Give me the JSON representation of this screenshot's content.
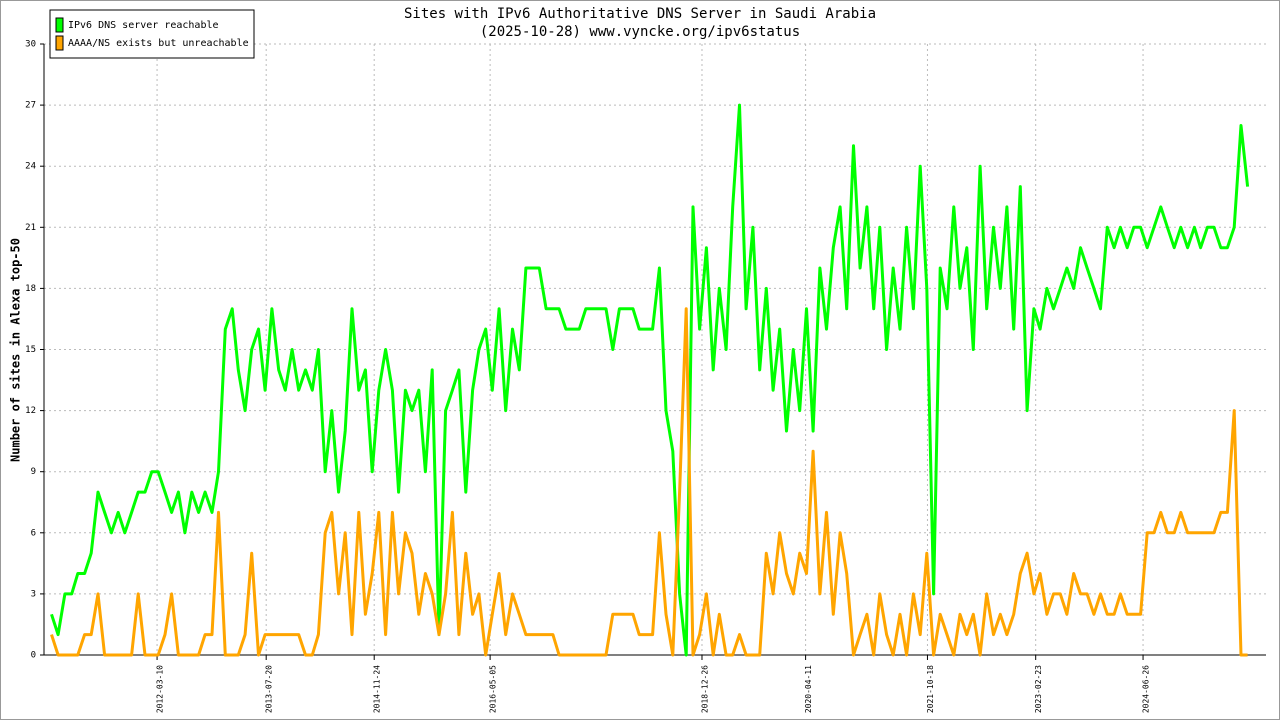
{
  "chart_data": {
    "type": "line",
    "title": "Sites with IPv6 Authoritative DNS Server in Saudi Arabia",
    "subtitle": "(2025-10-28) www.vyncke.org/ipv6status",
    "y_label": "Number of sites in Alexa top-50",
    "x": [
      "2010-11-15",
      "2010-12-15",
      "2011-01-15",
      "2011-02-15",
      "2011-03-15",
      "2011-04-15",
      "2011-05-15",
      "2011-06-15",
      "2011-07-15",
      "2011-08-15",
      "2011-09-15",
      "2011-10-15",
      "2011-11-15",
      "2011-12-15",
      "2012-01-15",
      "2012-02-15",
      "2012-03-15",
      "2012-04-15",
      "2012-05-15",
      "2012-06-15",
      "2012-07-15",
      "2012-08-15",
      "2012-09-15",
      "2012-10-15",
      "2012-11-15",
      "2012-12-15",
      "2013-01-15",
      "2013-02-15",
      "2013-03-15",
      "2013-04-15",
      "2013-05-15",
      "2013-06-15",
      "2013-07-15",
      "2013-08-15",
      "2013-09-15",
      "2013-10-15",
      "2013-11-15",
      "2013-12-15",
      "2014-01-15",
      "2014-02-15",
      "2014-03-15",
      "2014-04-15",
      "2014-05-15",
      "2014-06-15",
      "2014-07-15",
      "2014-08-15",
      "2014-09-15",
      "2014-10-15",
      "2014-11-15",
      "2014-12-15",
      "2015-01-15",
      "2015-02-15",
      "2015-03-15",
      "2015-04-15",
      "2015-05-15",
      "2015-06-15",
      "2015-07-15",
      "2015-08-15",
      "2015-09-15",
      "2015-10-15",
      "2015-11-15",
      "2015-12-15",
      "2016-01-15",
      "2016-02-15",
      "2016-03-15",
      "2016-04-15",
      "2016-05-15",
      "2016-06-15",
      "2016-07-15",
      "2016-08-15",
      "2016-09-15",
      "2016-10-15",
      "2016-11-15",
      "2016-12-15",
      "2017-01-15",
      "2017-02-15",
      "2017-03-15",
      "2017-04-15",
      "2017-05-15",
      "2017-06-15",
      "2017-07-15",
      "2017-08-15",
      "2017-09-15",
      "2017-10-15",
      "2017-11-15",
      "2017-12-15",
      "2018-01-15",
      "2018-02-15",
      "2018-03-15",
      "2018-04-15",
      "2018-05-15",
      "2018-06-15",
      "2018-07-15",
      "2018-08-15",
      "2018-09-15",
      "2018-10-15",
      "2018-11-15",
      "2018-12-15",
      "2019-01-15",
      "2019-02-15",
      "2019-03-15",
      "2019-04-15",
      "2019-05-15",
      "2019-06-15",
      "2019-07-15",
      "2019-08-15",
      "2019-09-15",
      "2019-10-15",
      "2019-11-15",
      "2019-12-15",
      "2020-01-15",
      "2020-02-15",
      "2020-03-15",
      "2020-04-15",
      "2020-05-15",
      "2020-06-15",
      "2020-07-15",
      "2020-08-15",
      "2020-09-15",
      "2020-10-15",
      "2020-11-15",
      "2020-12-15",
      "2021-01-15",
      "2021-02-15",
      "2021-03-15",
      "2021-04-15",
      "2021-05-15",
      "2021-06-15",
      "2021-07-15",
      "2021-08-15",
      "2021-09-15",
      "2021-10-15",
      "2021-11-15",
      "2021-12-15",
      "2022-01-15",
      "2022-02-15",
      "2022-03-15",
      "2022-04-15",
      "2022-05-15",
      "2022-06-15",
      "2022-07-15",
      "2022-08-15",
      "2022-09-15",
      "2022-10-15",
      "2022-11-15",
      "2022-12-15",
      "2023-01-15",
      "2023-02-15",
      "2023-03-15",
      "2023-04-15",
      "2023-05-15",
      "2023-06-15",
      "2023-07-15",
      "2023-08-15",
      "2023-09-15",
      "2023-10-15",
      "2023-11-15",
      "2023-12-15",
      "2024-01-15",
      "2024-02-15",
      "2024-03-15",
      "2024-04-15",
      "2024-05-15",
      "2024-06-15",
      "2024-07-15",
      "2024-08-15",
      "2024-09-15",
      "2024-10-15",
      "2024-11-15",
      "2024-12-15",
      "2025-01-15",
      "2025-02-15",
      "2025-03-15",
      "2025-04-15",
      "2025-05-15",
      "2025-06-15",
      "2025-07-15",
      "2025-08-15",
      "2025-09-15",
      "2025-10-15"
    ],
    "series": [
      {
        "name": "IPv6 DNS server reachable",
        "color": "#00ff00",
        "values": [
          2,
          1,
          3,
          3,
          4,
          4,
          5,
          8,
          7,
          6,
          7,
          6,
          7,
          8,
          8,
          9,
          9,
          8,
          7,
          8,
          6,
          8,
          7,
          8,
          7,
          9,
          16,
          17,
          14,
          12,
          15,
          16,
          13,
          17,
          14,
          13,
          15,
          13,
          14,
          13,
          15,
          9,
          12,
          8,
          11,
          17,
          13,
          14,
          9,
          13,
          15,
          13,
          8,
          13,
          12,
          13,
          9,
          14,
          1,
          12,
          13,
          14,
          8,
          13,
          15,
          16,
          13,
          17,
          12,
          16,
          14,
          19,
          19,
          19,
          17,
          17,
          17,
          16,
          16,
          16,
          17,
          17,
          17,
          17,
          15,
          17,
          17,
          17,
          16,
          16,
          16,
          19,
          12,
          10,
          3,
          0,
          22,
          16,
          20,
          14,
          18,
          15,
          22,
          27,
          17,
          21,
          14,
          18,
          13,
          16,
          11,
          15,
          12,
          17,
          11,
          19,
          16,
          20,
          22,
          17,
          25,
          19,
          22,
          17,
          21,
          15,
          19,
          16,
          21,
          17,
          24,
          18,
          3,
          19,
          17,
          22,
          18,
          20,
          15,
          24,
          17,
          21,
          18,
          22,
          16,
          23,
          12,
          17,
          16,
          18,
          17,
          18,
          19,
          18,
          20,
          19,
          18,
          17,
          21,
          20,
          21,
          20,
          21,
          21,
          20,
          21,
          22,
          21,
          20,
          21,
          20,
          21,
          20,
          21,
          21,
          20,
          20,
          21,
          26,
          23
        ]
      },
      {
        "name": "AAAA/NS exists but unreachable",
        "color": "#ffa500",
        "values": [
          1,
          0,
          0,
          0,
          0,
          1,
          1,
          3,
          0,
          0,
          0,
          0,
          0,
          3,
          0,
          0,
          0,
          1,
          3,
          0,
          0,
          0,
          0,
          1,
          1,
          7,
          0,
          0,
          0,
          1,
          5,
          0,
          1,
          1,
          1,
          1,
          1,
          1,
          0,
          0,
          1,
          6,
          7,
          3,
          6,
          1,
          7,
          2,
          4,
          7,
          1,
          7,
          3,
          6,
          5,
          2,
          4,
          3,
          1,
          3,
          7,
          1,
          5,
          2,
          3,
          0,
          2,
          4,
          1,
          3,
          2,
          1,
          1,
          1,
          1,
          1,
          0,
          0,
          0,
          0,
          0,
          0,
          0,
          0,
          2,
          2,
          2,
          2,
          1,
          1,
          1,
          6,
          2,
          0,
          8,
          17,
          0,
          1,
          3,
          0,
          2,
          0,
          0,
          1,
          0,
          0,
          0,
          5,
          3,
          6,
          4,
          3,
          5,
          4,
          10,
          3,
          7,
          2,
          6,
          4,
          0,
          1,
          2,
          0,
          3,
          1,
          0,
          2,
          0,
          3,
          1,
          5,
          0,
          2,
          1,
          0,
          2,
          1,
          2,
          0,
          3,
          1,
          2,
          1,
          2,
          4,
          5,
          3,
          4,
          2,
          3,
          3,
          2,
          4,
          3,
          3,
          2,
          3,
          2,
          2,
          3,
          2,
          2,
          2,
          6,
          6,
          7,
          6,
          6,
          7,
          6,
          6,
          6,
          6,
          6,
          7,
          7,
          12,
          0,
          0
        ]
      }
    ],
    "xlim": [
      "2010-10-12",
      "2026-01-07"
    ],
    "xticks": [
      "2012-03-10",
      "2013-07-20",
      "2014-11-24",
      "2016-05-05",
      "2018-12-26",
      "2020-04-11",
      "2021-10-18",
      "2023-02-23",
      "2024-06-26"
    ],
    "ylim": [
      0,
      30
    ],
    "yticks": [
      0,
      3,
      6,
      9,
      12,
      15,
      18,
      21,
      24,
      27,
      30
    ],
    "grid": true,
    "legend": "top-left"
  }
}
